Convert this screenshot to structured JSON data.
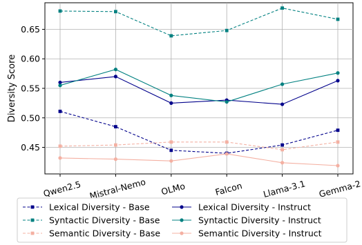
{
  "chart_data": {
    "type": "line",
    "title": "",
    "xlabel": "",
    "ylabel": "Diversity Score",
    "ylim": [
      0.405,
      0.695
    ],
    "yticks": [
      0.45,
      0.5,
      0.55,
      0.6,
      0.65
    ],
    "ytick_labels": [
      "0.45",
      "0.50",
      "0.55",
      "0.60",
      "0.65"
    ],
    "categories": [
      "Qwen2.5",
      "Mistral-Nemo",
      "OLMo",
      "Falcon",
      "Llama-3.1",
      "Gemma-2"
    ],
    "grid": true,
    "legend_position": "bottom",
    "series": [
      {
        "name": "Lexical Diversity - Base",
        "values": [
          0.511,
          0.485,
          0.445,
          0.44,
          0.454,
          0.479
        ],
        "color": "#00008b",
        "dash": true,
        "marker": "square"
      },
      {
        "name": "Lexical Diversity - Instruct",
        "values": [
          0.56,
          0.57,
          0.525,
          0.53,
          0.523,
          0.563
        ],
        "color": "#00008b",
        "dash": false,
        "marker": "circle"
      },
      {
        "name": "Syntactic Diversity - Base",
        "values": [
          0.681,
          0.68,
          0.639,
          0.648,
          0.686,
          0.667
        ],
        "color": "#008080",
        "dash": true,
        "marker": "square"
      },
      {
        "name": "Syntactic Diversity - Instruct",
        "values": [
          0.555,
          0.582,
          0.538,
          0.527,
          0.557,
          0.576
        ],
        "color": "#008080",
        "dash": false,
        "marker": "circle"
      },
      {
        "name": "Semantic Diversity - Base",
        "values": [
          0.452,
          0.454,
          0.459,
          0.459,
          0.446,
          0.459
        ],
        "color": "#f4b0a2",
        "dash": true,
        "marker": "square"
      },
      {
        "name": "Semantic Diversity - Instruct",
        "values": [
          0.432,
          0.43,
          0.427,
          0.439,
          0.424,
          0.419
        ],
        "color": "#f4b0a2",
        "dash": false,
        "marker": "circle"
      }
    ]
  }
}
